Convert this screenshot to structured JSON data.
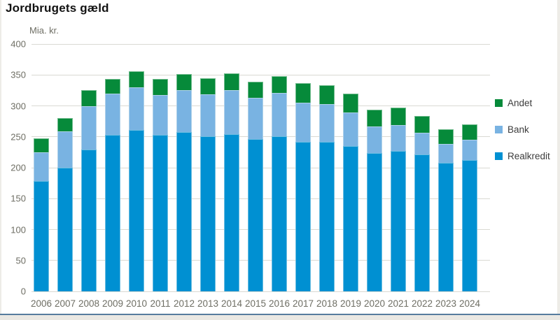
{
  "title": "Jordbrugets gæld",
  "y_axis_label": "Mia. kr.",
  "colors": {
    "realkredit": "#0090d2",
    "bank": "#79b3e2",
    "andet": "#068a3a",
    "gridline": "#d9d9d3",
    "axis_text": "#6e6e64",
    "legend_text": "#3c3c3c",
    "bottom_line": "#567c9e",
    "bottom_strip": "#eae8e3"
  },
  "legend": {
    "items": [
      {
        "label": "Andet",
        "color": "#068a3a"
      },
      {
        "label": "Bank",
        "color": "#79b3e2"
      },
      {
        "label": "Realkredit",
        "color": "#0090d2"
      }
    ]
  },
  "chart_data": {
    "type": "bar",
    "stacked": true,
    "stack_order": "bottom-to-top",
    "title": "Jordbrugets gæld",
    "ylabel": "Mia. kr.",
    "xlabel": "",
    "ylim": [
      0,
      400
    ],
    "yticks": [
      0,
      50,
      100,
      150,
      200,
      250,
      300,
      350,
      400
    ],
    "grid": true,
    "legend_position": "right",
    "categories": [
      "2006",
      "2007",
      "2008",
      "2009",
      "2010",
      "2011",
      "2012",
      "2013",
      "2014",
      "2015",
      "2016",
      "2017",
      "2018",
      "2019",
      "2020",
      "2021",
      "2022",
      "2023",
      "2024"
    ],
    "series": [
      {
        "name": "Realkredit",
        "color": "#0090d2",
        "values": [
          178,
          200,
          229,
          253,
          261,
          253,
          258,
          251,
          254,
          246,
          251,
          242,
          242,
          235,
          224,
          227,
          221,
          208,
          213
        ]
      },
      {
        "name": "Bank",
        "color": "#79b3e2",
        "values": [
          47,
          59,
          71,
          67,
          69,
          64,
          68,
          68,
          71,
          67,
          70,
          63,
          61,
          54,
          43,
          42,
          36,
          31,
          32
        ]
      },
      {
        "name": "Andet",
        "color": "#068a3a",
        "values": [
          22,
          21,
          26,
          23,
          26,
          26,
          26,
          26,
          27,
          26,
          27,
          32,
          30,
          31,
          27,
          28,
          27,
          23,
          25
        ]
      }
    ],
    "totals": [
      247,
      280,
      326,
      343,
      356,
      343,
      352,
      345,
      352,
      339,
      348,
      337,
      333,
      320,
      294,
      297,
      284,
      262,
      270
    ]
  }
}
